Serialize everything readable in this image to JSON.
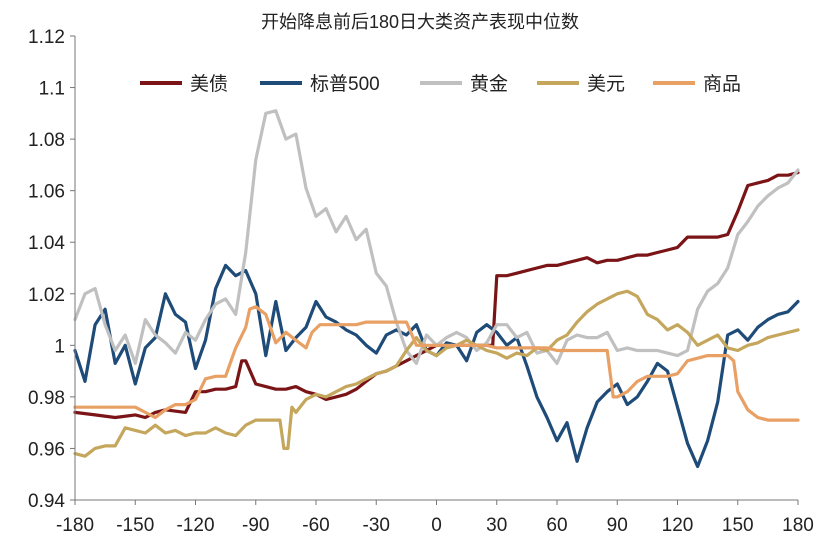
{
  "chart_data": {
    "type": "line",
    "title": "开始降息前后180日大类资产表现中位数",
    "xlabel": "",
    "ylabel": "",
    "xlim": [
      -180,
      180
    ],
    "ylim": [
      0.94,
      1.12
    ],
    "x_ticks": [
      "-180",
      "-150",
      "-120",
      "-90",
      "-60",
      "-30",
      "0",
      "30",
      "60",
      "90",
      "120",
      "150",
      "180"
    ],
    "y_ticks": [
      "0.94",
      "0.96",
      "0.98",
      "1",
      "1.02",
      "1.04",
      "1.06",
      "1.08",
      "1.1",
      "1.12"
    ],
    "legend_position": "top",
    "grid": false,
    "series": [
      {
        "name": "美债",
        "color": "#7b1416",
        "x": [
          -180,
          -170,
          -160,
          -150,
          -145,
          -140,
          -135,
          -125,
          -120,
          -115,
          -110,
          -105,
          -100,
          -97,
          -95,
          -90,
          -85,
          -80,
          -75,
          -70,
          -65,
          -60,
          -55,
          -50,
          -45,
          -40,
          -35,
          -30,
          -25,
          -20,
          -15,
          -10,
          -5,
          0,
          5,
          10,
          15,
          20,
          25,
          28,
          30,
          35,
          40,
          45,
          50,
          55,
          60,
          65,
          70,
          75,
          80,
          85,
          90,
          95,
          100,
          105,
          110,
          115,
          120,
          125,
          130,
          135,
          140,
          145,
          150,
          155,
          160,
          165,
          170,
          175,
          180
        ],
        "y": [
          0.974,
          0.973,
          0.972,
          0.973,
          0.972,
          0.974,
          0.975,
          0.974,
          0.982,
          0.982,
          0.983,
          0.983,
          0.984,
          0.994,
          0.994,
          0.985,
          0.984,
          0.983,
          0.983,
          0.984,
          0.982,
          0.981,
          0.979,
          0.98,
          0.981,
          0.983,
          0.986,
          0.989,
          0.99,
          0.992,
          0.994,
          0.996,
          0.998,
          1.0,
          1.0,
          1.0,
          1.0,
          1.0,
          1.0,
          1.0,
          1.027,
          1.027,
          1.028,
          1.029,
          1.03,
          1.031,
          1.031,
          1.032,
          1.033,
          1.034,
          1.032,
          1.033,
          1.033,
          1.034,
          1.035,
          1.035,
          1.036,
          1.037,
          1.038,
          1.042,
          1.042,
          1.042,
          1.042,
          1.043,
          1.052,
          1.062,
          1.063,
          1.064,
          1.066,
          1.066,
          1.067
        ]
      },
      {
        "name": "标普500",
        "color": "#1e4b78",
        "x": [
          -180,
          -175,
          -170,
          -165,
          -160,
          -155,
          -150,
          -145,
          -140,
          -135,
          -130,
          -125,
          -120,
          -115,
          -110,
          -105,
          -100,
          -95,
          -90,
          -85,
          -80,
          -75,
          -70,
          -65,
          -60,
          -55,
          -50,
          -45,
          -40,
          -35,
          -30,
          -25,
          -20,
          -15,
          -10,
          -5,
          0,
          5,
          10,
          15,
          20,
          25,
          30,
          35,
          40,
          45,
          50,
          55,
          60,
          65,
          70,
          75,
          80,
          85,
          90,
          95,
          100,
          105,
          110,
          115,
          120,
          125,
          130,
          135,
          140,
          145,
          150,
          155,
          160,
          165,
          170,
          175,
          180
        ],
        "y": [
          0.998,
          0.986,
          1.008,
          1.014,
          0.993,
          1.0,
          0.985,
          0.999,
          1.003,
          1.02,
          1.012,
          1.009,
          0.991,
          1.002,
          1.022,
          1.031,
          1.027,
          1.029,
          1.02,
          0.996,
          1.017,
          0.998,
          1.003,
          1.007,
          1.017,
          1.011,
          1.009,
          1.006,
          1.004,
          1.0,
          0.997,
          1.004,
          1.006,
          1.004,
          1.008,
          0.998,
          0.996,
          1.001,
          1.0,
          0.994,
          1.005,
          1.008,
          1.005,
          1.0,
          1.003,
          0.992,
          0.98,
          0.972,
          0.963,
          0.97,
          0.955,
          0.968,
          0.978,
          0.982,
          0.985,
          0.977,
          0.98,
          0.986,
          0.993,
          0.99,
          0.976,
          0.962,
          0.953,
          0.963,
          0.978,
          1.004,
          1.006,
          1.002,
          1.007,
          1.01,
          1.012,
          1.013,
          1.017
        ]
      },
      {
        "name": "黄金",
        "color": "#c0c0c0",
        "x": [
          -180,
          -175,
          -170,
          -165,
          -160,
          -155,
          -150,
          -145,
          -140,
          -135,
          -130,
          -125,
          -120,
          -115,
          -110,
          -105,
          -100,
          -95,
          -90,
          -85,
          -80,
          -75,
          -70,
          -65,
          -60,
          -55,
          -50,
          -45,
          -40,
          -35,
          -30,
          -25,
          -20,
          -15,
          -10,
          -5,
          0,
          5,
          10,
          15,
          20,
          25,
          30,
          35,
          40,
          45,
          50,
          55,
          60,
          65,
          70,
          75,
          80,
          85,
          90,
          95,
          100,
          105,
          110,
          115,
          120,
          125,
          130,
          135,
          140,
          145,
          150,
          155,
          160,
          165,
          170,
          175,
          180
        ],
        "y": [
          1.01,
          1.02,
          1.022,
          1.008,
          0.998,
          1.004,
          0.993,
          1.01,
          1.004,
          1.001,
          0.997,
          1.005,
          1.002,
          1.01,
          1.016,
          1.018,
          1.012,
          1.036,
          1.072,
          1.09,
          1.091,
          1.08,
          1.082,
          1.061,
          1.05,
          1.053,
          1.044,
          1.05,
          1.041,
          1.045,
          1.028,
          1.023,
          1.009,
          0.998,
          0.993,
          1.004,
          1.0,
          1.003,
          1.005,
          1.003,
          0.998,
          1.001,
          1.008,
          1.008,
          1.003,
          1.005,
          0.997,
          0.998,
          0.993,
          1.002,
          1.004,
          1.003,
          1.003,
          1.005,
          0.998,
          0.999,
          0.998,
          0.998,
          0.998,
          0.997,
          0.996,
          0.998,
          1.014,
          1.021,
          1.024,
          1.03,
          1.043,
          1.048,
          1.054,
          1.058,
          1.061,
          1.063,
          1.068
        ]
      },
      {
        "name": "美元",
        "color": "#c4a75c",
        "x": [
          -180,
          -175,
          -170,
          -165,
          -160,
          -155,
          -150,
          -145,
          -140,
          -135,
          -130,
          -125,
          -120,
          -115,
          -110,
          -105,
          -100,
          -95,
          -90,
          -85,
          -80,
          -78,
          -76,
          -74,
          -72,
          -70,
          -65,
          -60,
          -55,
          -50,
          -45,
          -40,
          -35,
          -30,
          -25,
          -20,
          -15,
          -10,
          -5,
          0,
          5,
          10,
          15,
          20,
          25,
          30,
          35,
          40,
          45,
          50,
          55,
          60,
          65,
          70,
          75,
          80,
          85,
          90,
          95,
          100,
          105,
          110,
          115,
          120,
          125,
          130,
          135,
          140,
          145,
          150,
          155,
          160,
          165,
          170,
          175,
          180
        ],
        "y": [
          0.958,
          0.957,
          0.96,
          0.961,
          0.961,
          0.968,
          0.967,
          0.966,
          0.969,
          0.966,
          0.967,
          0.965,
          0.966,
          0.966,
          0.968,
          0.966,
          0.965,
          0.969,
          0.971,
          0.971,
          0.971,
          0.971,
          0.96,
          0.96,
          0.976,
          0.974,
          0.979,
          0.981,
          0.98,
          0.982,
          0.984,
          0.985,
          0.987,
          0.989,
          0.99,
          0.992,
          0.998,
          1.003,
          0.998,
          0.996,
          0.999,
          1.0,
          1.002,
          1.0,
          0.998,
          0.997,
          0.995,
          0.997,
          0.996,
          0.999,
          0.998,
          1.002,
          1.004,
          1.009,
          1.013,
          1.016,
          1.018,
          1.02,
          1.021,
          1.019,
          1.012,
          1.01,
          1.006,
          1.008,
          1.005,
          1.0,
          1.002,
          1.004,
          0.999,
          0.998,
          1.0,
          1.001,
          1.003,
          1.004,
          1.005,
          1.006
        ]
      },
      {
        "name": "商品",
        "color": "#e8a065",
        "x": [
          -180,
          -170,
          -160,
          -155,
          -150,
          -140,
          -135,
          -130,
          -125,
          -120,
          -115,
          -110,
          -105,
          -100,
          -95,
          -93,
          -90,
          -85,
          -80,
          -75,
          -70,
          -65,
          -62,
          -58,
          -55,
          -50,
          -45,
          -40,
          -35,
          -30,
          -25,
          -20,
          -15,
          -10,
          -5,
          0,
          5,
          10,
          15,
          20,
          25,
          30,
          35,
          40,
          45,
          50,
          55,
          60,
          65,
          70,
          75,
          80,
          85,
          88,
          90,
          95,
          100,
          105,
          110,
          115,
          120,
          125,
          130,
          135,
          140,
          145,
          148,
          150,
          155,
          160,
          165,
          170,
          175,
          180
        ],
        "y": [
          0.976,
          0.976,
          0.976,
          0.976,
          0.976,
          0.972,
          0.975,
          0.977,
          0.977,
          0.979,
          0.987,
          0.988,
          0.988,
          0.999,
          1.007,
          1.014,
          1.015,
          1.012,
          1.001,
          1.005,
          1.002,
          0.999,
          1.005,
          1.008,
          1.008,
          1.008,
          1.008,
          1.008,
          1.009,
          1.009,
          1.009,
          1.009,
          1.009,
          1.0,
          1.0,
          1.0,
          1.0,
          1.0,
          1.0,
          1.0,
          1.0,
          0.999,
          0.999,
          0.999,
          0.999,
          0.999,
          0.999,
          0.998,
          0.998,
          0.998,
          0.998,
          0.998,
          0.998,
          0.98,
          0.98,
          0.982,
          0.986,
          0.988,
          0.988,
          0.988,
          0.989,
          0.994,
          0.995,
          0.996,
          0.996,
          0.996,
          0.994,
          0.982,
          0.975,
          0.972,
          0.971,
          0.971,
          0.971,
          0.971
        ]
      }
    ]
  }
}
